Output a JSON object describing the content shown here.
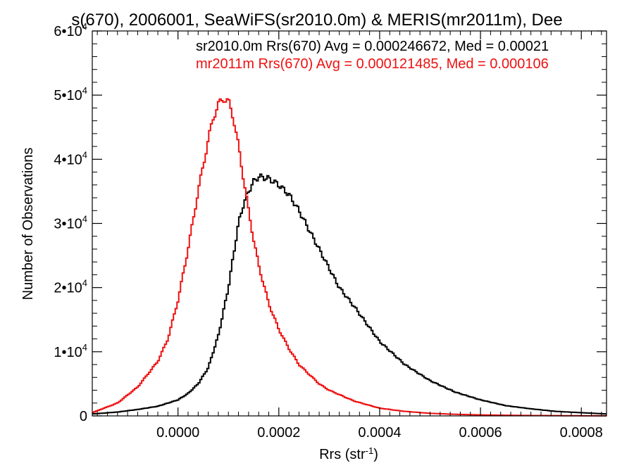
{
  "chart_data": {
    "type": "histogram-step",
    "title": "s(670), 2006001, SeaWiFS(sr2010.0m) & MERIS(mr2011m), Dee",
    "xlabel": "Rrs (str",
    "xlabel_sup": "-1",
    "xlabel_close": ")",
    "ylabel": "Number of Observations",
    "xlim": [
      -0.00017,
      0.00085
    ],
    "ylim": [
      0,
      60000
    ],
    "xticks": [
      {
        "value": 0.0,
        "label": "0.0000"
      },
      {
        "value": 0.0002,
        "label": "0.0002"
      },
      {
        "value": 0.0004,
        "label": "0.0004"
      },
      {
        "value": 0.0006,
        "label": "0.0006"
      },
      {
        "value": 0.0008,
        "label": "0.0008"
      }
    ],
    "yticks": [
      {
        "value": 0,
        "label": "0",
        "exp": ""
      },
      {
        "value": 10000,
        "label": "1•10",
        "exp": "4"
      },
      {
        "value": 20000,
        "label": "2•10",
        "exp": "4"
      },
      {
        "value": 30000,
        "label": "3•10",
        "exp": "4"
      },
      {
        "value": 40000,
        "label": "4•10",
        "exp": "4"
      },
      {
        "value": 50000,
        "label": "5•10",
        "exp": "4"
      },
      {
        "value": 60000,
        "label": "6•10",
        "exp": "4"
      }
    ],
    "legend": [
      {
        "text": "sr2010.0m Rrs(670) Avg = 0.000246672, Med = 0.00021",
        "color": "#000000"
      },
      {
        "text": "mr2011m Rrs(670) Avg = 0.000121485, Med = 0.000106",
        "color": "#ee1111"
      }
    ],
    "series": [
      {
        "name": "sr2010.0m",
        "color": "#000000",
        "x": [
          -0.00017,
          -0.00012,
          -8e-05,
          -4e-05,
          0.0,
          2e-05,
          4e-05,
          6e-05,
          8e-05,
          0.0001,
          0.00011,
          0.00012,
          0.00013,
          0.00014,
          0.00015,
          0.00016,
          0.00018,
          0.0002,
          0.00022,
          0.00024,
          0.00026,
          0.00028,
          0.0003,
          0.00032,
          0.00035,
          0.0004,
          0.00045,
          0.0005,
          0.00055,
          0.0006,
          0.00065,
          0.0007,
          0.00075,
          0.0008,
          0.00085
        ],
        "values": [
          300,
          600,
          1000,
          1500,
          2500,
          3500,
          5000,
          7500,
          12500,
          20000,
          25000,
          30000,
          33000,
          35000,
          36500,
          37300,
          37000,
          36000,
          34500,
          32000,
          29000,
          26000,
          23000,
          20000,
          17000,
          11600,
          8000,
          5500,
          3700,
          2500,
          1600,
          1100,
          700,
          500,
          300
        ]
      },
      {
        "name": "mr2011m",
        "color": "#ee1111",
        "x": [
          -0.00017,
          -0.00012,
          -8e-05,
          -4e-05,
          -2e-05,
          0.0,
          2e-05,
          4e-05,
          6e-05,
          7e-05,
          8e-05,
          9e-05,
          0.0001,
          0.00011,
          0.00012,
          0.00013,
          0.00014,
          0.00015,
          0.00016,
          0.00018,
          0.0002,
          0.00022,
          0.00024,
          0.00026,
          0.00028,
          0.0003,
          0.00035,
          0.0004,
          0.00045,
          0.0005,
          0.00055,
          0.0006,
          0.00065,
          0.0007,
          0.00075,
          0.0008,
          0.00085
        ],
        "values": [
          500,
          2000,
          4500,
          8500,
          12000,
          18000,
          26000,
          35000,
          43000,
          46500,
          48500,
          49500,
          49000,
          46500,
          42000,
          37000,
          32000,
          27500,
          23500,
          17500,
          13500,
          10500,
          8000,
          6500,
          5000,
          4000,
          2300,
          1200,
          700,
          400,
          250,
          150,
          100,
          60,
          40,
          20,
          10
        ]
      }
    ]
  }
}
